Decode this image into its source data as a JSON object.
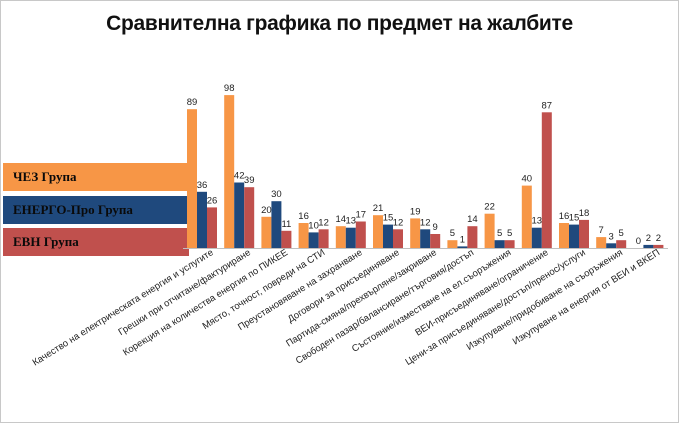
{
  "chart_data": {
    "type": "bar",
    "title": "Сравнителна графика по предмет на жалбите",
    "xlabel": "",
    "ylabel": "",
    "ylim": [
      0,
      100
    ],
    "grid": false,
    "legend_placement": "left",
    "categories": [
      "Качество на електрическата енергия и услугите",
      "Грешки при отчитане/фактуриране",
      "Корекция на количества енергия по ПИКЕЕ",
      "Място, точност, повреди на СТИ",
      "Преустановяване на захранване",
      "Договори за присъединяване",
      "Партида-смяна/прехвърляне/закриване",
      "Свободен пазар/балансиране/търговия/достъп",
      "Състояние/изместване на ел.съоръжения",
      "ВЕИ-присъединяване/ограничение",
      "Цени-за присъединяване/достъп/пренос/услуги",
      "Изкупуване/придобиване на съоръжения",
      "Изкупуване на енергия от ВЕИ и ВКЕП"
    ],
    "series": [
      {
        "name": "ЧЕЗ Група",
        "values": [
          89,
          98,
          20,
          16,
          14,
          21,
          19,
          5,
          22,
          40,
          16,
          7,
          0
        ]
      },
      {
        "name": "ЕНЕРГО-Про Група",
        "values": [
          36,
          42,
          30,
          10,
          13,
          15,
          12,
          1,
          5,
          13,
          15,
          3,
          2
        ]
      },
      {
        "name": "ЕВН Група",
        "values": [
          26,
          39,
          11,
          12,
          17,
          12,
          9,
          14,
          5,
          87,
          18,
          5,
          2
        ]
      }
    ]
  },
  "legend": {
    "chez": "ЧЕЗ Група",
    "energo": "ЕНЕРГО-Про Група",
    "evn": "ЕВН Група"
  },
  "colors": {
    "chez": "#f79646",
    "energo": "#1f497d",
    "evn": "#c0504d"
  }
}
